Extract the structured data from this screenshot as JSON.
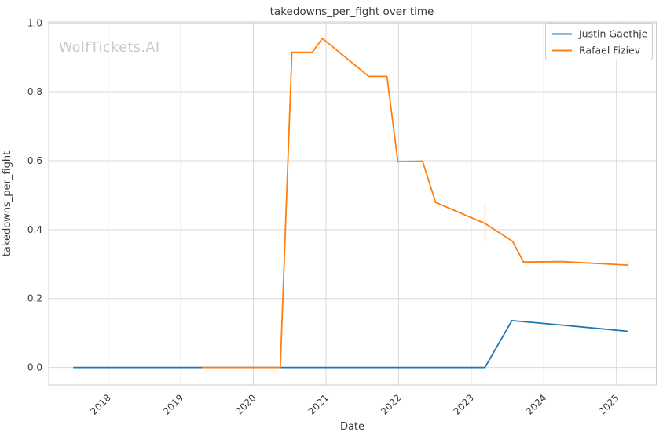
{
  "watermark": "WolfTickets.AI",
  "colors": {
    "series_blue": "#1f77b4",
    "series_orange": "#ff7f0e",
    "grid": "#d9d9d9",
    "frame": "#cccccc",
    "text": "#3a3a3a",
    "watermark": "#c9c9c9",
    "background": "#ffffff",
    "legend_border": "#cccccc"
  },
  "chart_data": {
    "type": "line",
    "title": "takedowns_per_fight over time",
    "xlabel": "Date",
    "ylabel": "takedowns_per_fight",
    "xlim": [
      2017.18,
      2025.55
    ],
    "ylim": [
      -0.051,
      1.003
    ],
    "xticks": [
      2018,
      2019,
      2020,
      2021,
      2022,
      2023,
      2024,
      2025
    ],
    "xtick_labels": [
      "2018",
      "2019",
      "2020",
      "2021",
      "2022",
      "2023",
      "2024",
      "2025"
    ],
    "yticks": [
      0.0,
      0.2,
      0.4,
      0.6,
      0.8,
      1.0
    ],
    "ytick_labels": [
      "0.0",
      "0.2",
      "0.4",
      "0.6",
      "0.8",
      "1.0"
    ],
    "grid": true,
    "legend_position": "upper right",
    "series": [
      {
        "name": "Justin Gaethje",
        "color": "#1f77b4",
        "points": [
          [
            2017.52,
            0.0
          ],
          [
            2023.19,
            0.0
          ],
          [
            2023.56,
            0.136
          ],
          [
            2024.3,
            0.122
          ],
          [
            2025.16,
            0.105
          ]
        ]
      },
      {
        "name": "Rafael Fiziev",
        "color": "#ff7f0e",
        "points": [
          [
            2019.29,
            0.0
          ],
          [
            2020.37,
            0.0
          ],
          [
            2020.53,
            0.915
          ],
          [
            2020.81,
            0.915
          ],
          [
            2020.95,
            0.955
          ],
          [
            2021.59,
            0.845
          ],
          [
            2021.84,
            0.845
          ],
          [
            2021.99,
            0.597
          ],
          [
            2022.33,
            0.599
          ],
          [
            2022.51,
            0.479
          ],
          [
            2023.19,
            0.418
          ],
          [
            2023.57,
            0.366
          ],
          [
            2023.72,
            0.306
          ],
          [
            2024.26,
            0.307
          ],
          [
            2025.16,
            0.297
          ]
        ]
      }
    ],
    "annotations": [
      {
        "type": "vline-segment",
        "x": 2023.19,
        "y1": 0.366,
        "y2": 0.477,
        "color": "#ff7f0e",
        "opacity": 0.3
      },
      {
        "type": "vline-segment",
        "x": 2025.16,
        "y1": 0.282,
        "y2": 0.312,
        "color": "#ff7f0e",
        "opacity": 0.35
      }
    ]
  }
}
